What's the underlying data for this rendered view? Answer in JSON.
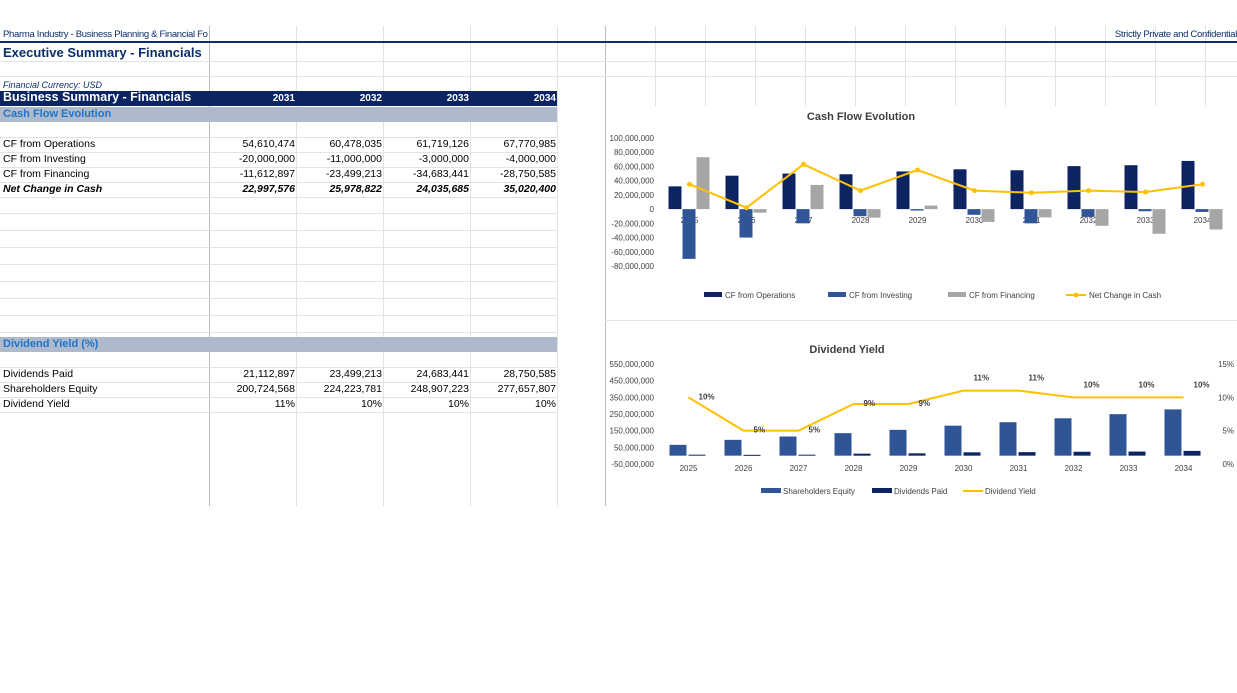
{
  "header": {
    "left": "Pharma Industry - Business Planning & Financial Fo",
    "right": "Strictly Private and Confidential",
    "title": "Executive Summary - Financials",
    "currency": "Financial Currency: USD"
  },
  "summary": {
    "label": "Business Summary - Financials",
    "years": [
      "2031",
      "2032",
      "2033",
      "2034"
    ]
  },
  "cashflow": {
    "section": "Cash Flow Evolution",
    "rows": [
      {
        "label": "CF from Operations",
        "values": [
          "54,610,474",
          "60,478,035",
          "61,719,126",
          "67,770,985"
        ]
      },
      {
        "label": "CF from Investing",
        "values": [
          "-20,000,000",
          "-11,000,000",
          "-3,000,000",
          "-4,000,000"
        ]
      },
      {
        "label": "CF from Financing",
        "values": [
          "-11,612,897",
          "-23,499,213",
          "-34,683,441",
          "-28,750,585"
        ]
      },
      {
        "label": "Net Change in Cash",
        "values": [
          "22,997,576",
          "25,978,822",
          "24,035,685",
          "35,020,400"
        ]
      }
    ]
  },
  "dividend": {
    "section": "Dividend Yield (%)",
    "rows": [
      {
        "label": "Dividends Paid",
        "values": [
          "21,112,897",
          "23,499,213",
          "24,683,441",
          "28,750,585"
        ]
      },
      {
        "label": "Shareholders Equity",
        "values": [
          "200,724,568",
          "224,223,781",
          "248,907,223",
          "277,657,807"
        ]
      },
      {
        "label": "Dividend Yield",
        "values": [
          "11%",
          "10%",
          "10%",
          "10%"
        ]
      }
    ]
  },
  "chart_data": [
    {
      "type": "bar",
      "title": "Cash Flow Evolution",
      "categories": [
        "2025",
        "2026",
        "2027",
        "2028",
        "2029",
        "2030",
        "2031",
        "2032",
        "2033",
        "2034"
      ],
      "ylim": [
        -80000000,
        100000000
      ],
      "yticks": [
        "100,000,000",
        "80,000,000",
        "60,000,000",
        "40,000,000",
        "20,000,000",
        "0",
        "-20,000,000",
        "-40,000,000",
        "-60,000,000",
        "-80,000,000"
      ],
      "series": [
        {
          "name": "CF from Operations",
          "kind": "bar",
          "color": "#0c2461",
          "values": [
            32000000,
            47000000,
            50000000,
            49000000,
            53000000,
            56000000,
            54610474,
            60478035,
            61719126,
            67770985
          ]
        },
        {
          "name": "CF from Investing",
          "kind": "bar",
          "color": "#2f5597",
          "values": [
            -70000000,
            -40000000,
            -20000000,
            -10000000,
            -2000000,
            -8000000,
            -20000000,
            -11000000,
            -3000000,
            -4000000
          ]
        },
        {
          "name": "CF from Financing",
          "kind": "bar",
          "color": "#a6a6a6",
          "values": [
            73000000,
            -5000000,
            34000000,
            -12000000,
            5000000,
            -18000000,
            -11612897,
            -23499213,
            -34683441,
            -28750585
          ]
        },
        {
          "name": "Net Change in Cash",
          "kind": "line",
          "color": "#ffc000",
          "values": [
            35000000,
            2000000,
            63000000,
            26000000,
            55000000,
            26000000,
            22997576,
            25978822,
            24035685,
            35020400
          ]
        }
      ],
      "legend": "bottom"
    },
    {
      "type": "bar",
      "title": "Dividend Yield",
      "categories": [
        "2025",
        "2026",
        "2027",
        "2028",
        "2029",
        "2030",
        "2031",
        "2032",
        "2033",
        "2034"
      ],
      "ylim": [
        -50000000,
        550000000
      ],
      "yticks": [
        "550,000,000",
        "450,000,000",
        "350,000,000",
        "250,000,000",
        "150,000,000",
        "50,000,000",
        "-50,000,000"
      ],
      "y2lim": [
        0,
        15
      ],
      "y2ticks": [
        "15%",
        "10%",
        "5%",
        "0%"
      ],
      "series": [
        {
          "name": "Shareholders Equity",
          "kind": "bar",
          "color": "#2f5597",
          "values": [
            65000000,
            95000000,
            115000000,
            135000000,
            155000000,
            180000000,
            200724568,
            224223781,
            248907223,
            277657807
          ]
        },
        {
          "name": "Dividends Paid",
          "kind": "bar",
          "color": "#0c2461",
          "values": [
            6000000,
            5000000,
            6000000,
            12000000,
            14000000,
            20000000,
            21112897,
            23499213,
            24683441,
            28750585
          ]
        },
        {
          "name": "Dividend Yield",
          "kind": "line",
          "color": "#ffc000",
          "values": [
            10,
            5,
            5,
            9,
            9,
            11,
            11,
            10,
            10,
            10
          ],
          "labels": [
            "10%",
            "5%",
            "5%",
            "9%",
            "9%",
            "11%",
            "11%",
            "10%",
            "10%",
            "10%"
          ]
        }
      ],
      "legend": "bottom"
    }
  ]
}
